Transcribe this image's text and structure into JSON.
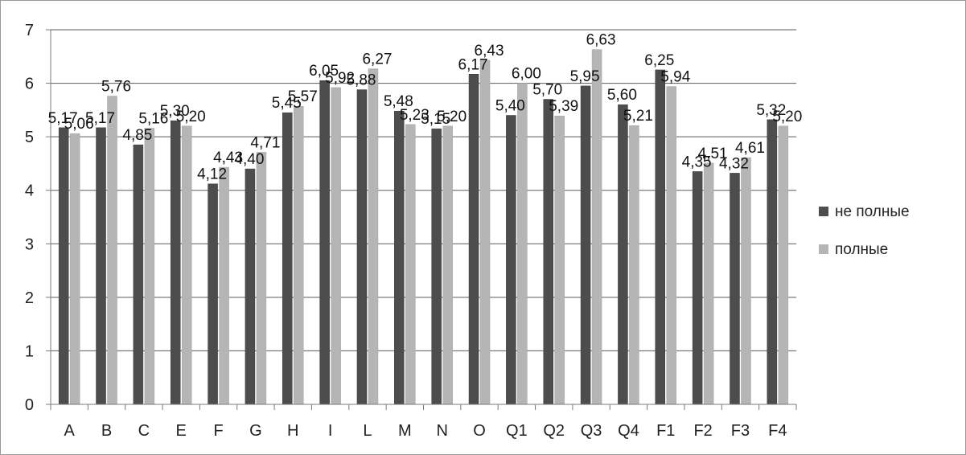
{
  "chart_data": {
    "type": "bar",
    "categories": [
      "A",
      "B",
      "C",
      "E",
      "F",
      "G",
      "H",
      "I",
      "L",
      "M",
      "N",
      "O",
      "Q1",
      "Q2",
      "Q3",
      "Q4",
      "F1",
      "F2",
      "F3",
      "F4"
    ],
    "series": [
      {
        "name": "не полные",
        "color": "#4d4d4d",
        "values": [
          5.17,
          5.17,
          4.85,
          5.3,
          4.12,
          4.4,
          5.45,
          6.05,
          5.88,
          5.48,
          5.15,
          6.17,
          5.4,
          5.7,
          5.95,
          5.6,
          6.25,
          4.35,
          4.32,
          5.32
        ],
        "labels": [
          "5,17",
          "5,17",
          "4,85",
          "5,30",
          "4,12",
          "4,40",
          "5,45",
          "6,05",
          "5,88",
          "5,48",
          "5,15",
          "6,17",
          "5,40",
          "5,70",
          "5,95",
          "5,60",
          "6,25",
          "4,35",
          "4,32",
          "5,32"
        ]
      },
      {
        "name": "полные",
        "color": "#b5b5b5",
        "values": [
          5.06,
          5.76,
          5.16,
          5.2,
          4.43,
          4.71,
          5.57,
          5.92,
          6.27,
          5.23,
          5.2,
          6.43,
          6.0,
          5.39,
          6.63,
          5.21,
          5.94,
          4.51,
          4.61,
          5.2
        ],
        "labels": [
          "5,06",
          "5,76",
          "5,16",
          "5,20",
          "4,43",
          "4,71",
          "5,57",
          "5,92",
          "6,27",
          "5,23",
          "5,20",
          "6,43",
          "6,00",
          "5,39",
          "6,63",
          "5,21",
          "5,94",
          "4,51",
          "4,61",
          "5,20"
        ]
      }
    ],
    "y_ticks": [
      "0",
      "1",
      "2",
      "3",
      "4",
      "5",
      "6",
      "7"
    ],
    "ylim": [
      0,
      7
    ],
    "grid": true,
    "legend_position": "right"
  }
}
